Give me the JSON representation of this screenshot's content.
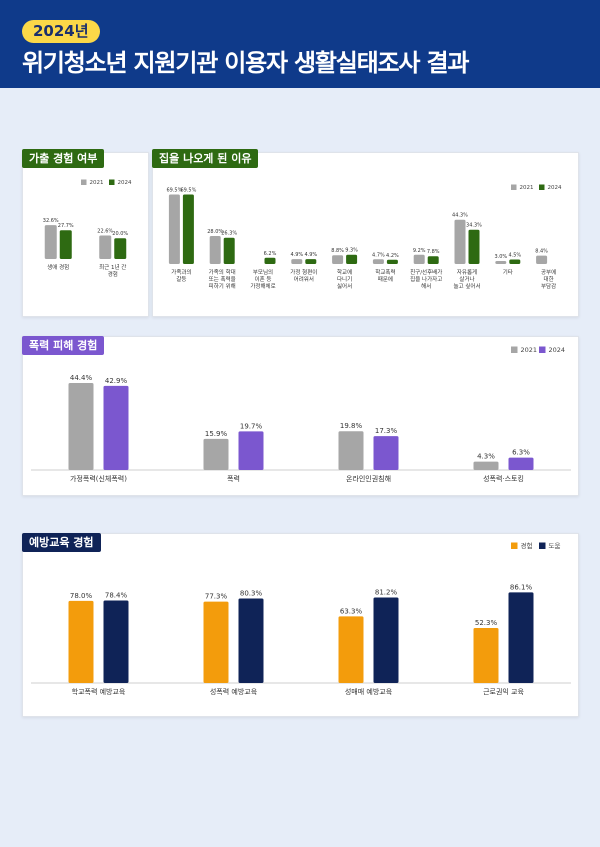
{
  "header": {
    "year": "2024년",
    "title": "위기청소년 지원기관 이용자 생활실태조사 결과"
  },
  "colors": {
    "header_bg": "#0f3a8a",
    "badge_bg": "#fbd848",
    "gray": "#a6a6a6",
    "green": "#2e6a12",
    "purple": "#7b57cf",
    "orange": "#f39c0c",
    "navy": "#0f2357"
  },
  "panels": {
    "runaway_experience": {
      "tag": "가출 경험 여부"
    },
    "runaway_reasons": {
      "tag": "집을 나오게 된 이유"
    },
    "violence": {
      "tag": "폭력 피해 경험"
    },
    "prevention": {
      "tag": "예방교육 경험"
    }
  },
  "chart_data": [
    {
      "id": "runaway_experience",
      "type": "bar",
      "categories": [
        "생애 경험",
        "최근 1년 간\n경험"
      ],
      "series": [
        {
          "name": "2021",
          "values": [
            32.6,
            22.6
          ]
        },
        {
          "name": "2024",
          "values": [
            27.7,
            20.0
          ]
        }
      ],
      "value_labels": [
        [
          "32.6%",
          "22.6%"
        ],
        [
          "27.7%",
          "20.0%"
        ]
      ],
      "ylim": [
        0,
        75
      ],
      "legend": "top-right"
    },
    {
      "id": "runaway_reasons",
      "type": "bar",
      "categories": [
        "가족과의\n갈등",
        "가족의 학대\n또는 폭력을\n피하기 위해",
        "부모님의\n이혼 등\n가정해체로",
        "가정 형편이\n어려워서",
        "학교에\n다니기\n싫어서",
        "학교폭력\n때문에",
        "친구/선후배가\n집을 나가자고\n해서",
        "자유롭게\n살거나\n놀고 싶어서",
        "기타",
        "공부에\n대한\n부담감"
      ],
      "series": [
        {
          "name": "2021",
          "values": [
            69.5,
            28.0,
            null,
            4.9,
            8.8,
            4.7,
            9.2,
            44.3,
            3.0,
            8.4
          ]
        },
        {
          "name": "2024",
          "values": [
            69.5,
            26.3,
            6.2,
            4.9,
            9.3,
            4.2,
            7.8,
            34.3,
            4.5,
            null
          ]
        }
      ],
      "value_labels": [
        [
          "69.5%",
          "28.0%",
          "",
          "4.9%",
          "8.8%",
          "4.7%",
          "9.2%",
          "44.3%",
          "3.0%",
          "8.4%"
        ],
        [
          "69.5%",
          "26.3%",
          "6.2%",
          "4.9%",
          "9.3%",
          "4.2%",
          "7.8%",
          "34.3%",
          "4.5%",
          ""
        ]
      ],
      "ylim": [
        0,
        75
      ],
      "legend": "top-right"
    },
    {
      "id": "violence",
      "type": "bar",
      "categories": [
        "가정폭력(신체폭력)",
        "폭력",
        "온라인인권침해",
        "성폭력·스토킹"
      ],
      "series": [
        {
          "name": "2021",
          "values": [
            44.4,
            15.9,
            19.8,
            4.3
          ]
        },
        {
          "name": "2024",
          "values": [
            42.9,
            19.7,
            17.3,
            6.3
          ]
        }
      ],
      "value_labels": [
        [
          "44.4%",
          "15.9%",
          "19.8%",
          "4.3%"
        ],
        [
          "42.9%",
          "19.7%",
          "17.3%",
          "6.3%"
        ]
      ],
      "ylim": [
        0,
        50
      ],
      "legend": "top-right"
    },
    {
      "id": "prevention",
      "type": "bar",
      "categories": [
        "학교폭력 예방교육",
        "성폭력 예방교육",
        "성매매 예방교육",
        "근로권익 교육"
      ],
      "series": [
        {
          "name": "경험",
          "values": [
            78.0,
            77.3,
            63.3,
            52.3
          ]
        },
        {
          "name": "도움",
          "values": [
            78.4,
            80.3,
            81.2,
            86.1
          ]
        }
      ],
      "value_labels": [
        [
          "78.0%",
          "77.3%",
          "63.3%",
          "52.3%"
        ],
        [
          "78.4%",
          "80.3%",
          "81.2%",
          "86.1%"
        ]
      ],
      "ylim": [
        0,
        95
      ],
      "legend": "top-right"
    }
  ]
}
